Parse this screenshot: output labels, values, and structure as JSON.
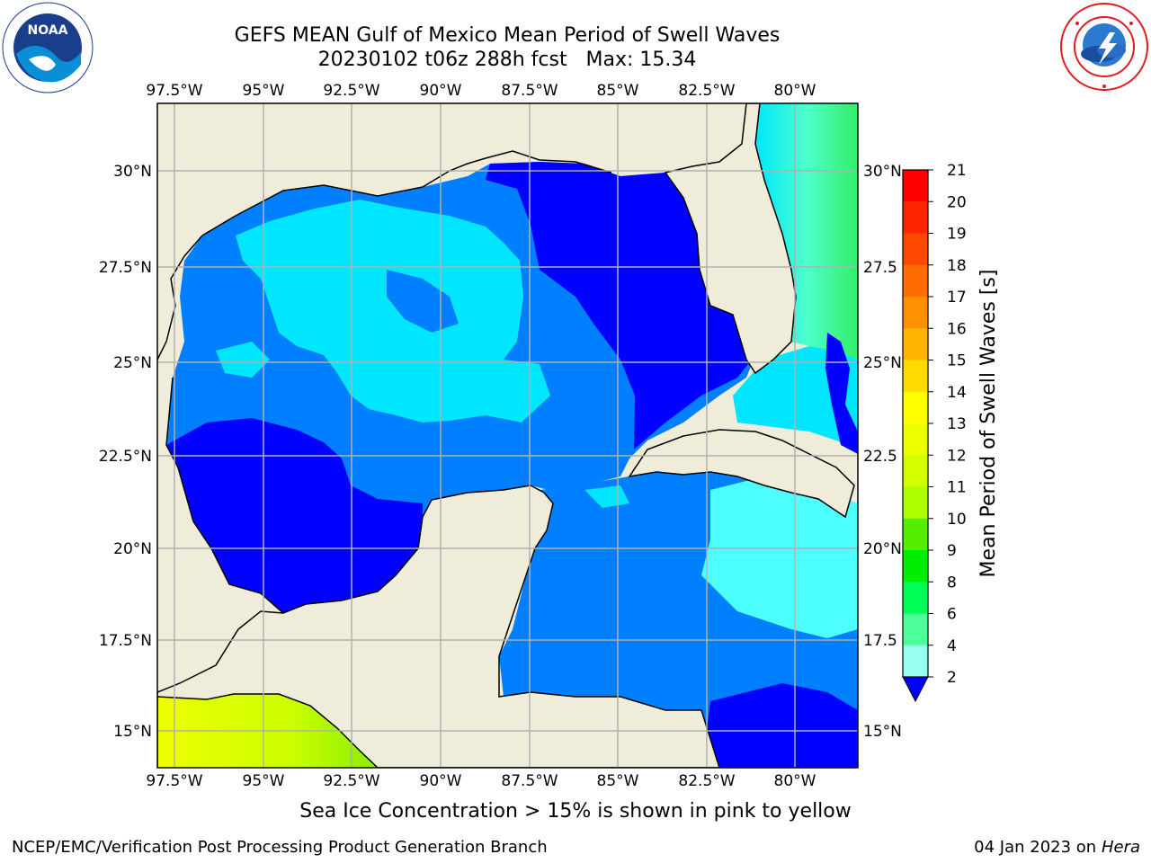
{
  "header": {
    "title_line1": "GEFS MEAN Gulf of Mexico Mean Period of Swell Waves",
    "title_line2": "20230102 t06z 288h fcst   Max: 15.34"
  },
  "logos": {
    "left": "noaa-logo",
    "left_text": "NOAA",
    "right": "nws-logo"
  },
  "map": {
    "lon_labels": [
      "97.5°W",
      "95°W",
      "92.5°W",
      "90°W",
      "87.5°W",
      "85°W",
      "82.5°W",
      "80°W"
    ],
    "lat_labels": [
      "30°N",
      "27.5°N",
      "25°N",
      "22.5°N",
      "20°N",
      "17.5°N",
      "15°N"
    ],
    "lat_labels_right": [
      "30°N",
      "27.5",
      "25°N",
      "22.5",
      "20°N",
      "17.5",
      "15°N"
    ],
    "colors": {
      "land": "#efecd9",
      "band_2_4": "#0080ff",
      "band_below_2": "#0000ff",
      "band_4_6": "#00e6ff",
      "band_8_9": "#4dffbf",
      "yellow_region": "#e6ff00",
      "grid": "#b0b0b0"
    }
  },
  "colorbar": {
    "label": "Mean Period of Swell Waves [s]",
    "ticks": [
      "21",
      "20",
      "19",
      "18",
      "17",
      "16",
      "15",
      "14",
      "13",
      "12",
      "11",
      "10",
      "9",
      "8",
      "6",
      "4",
      "2"
    ],
    "colors": [
      "#ff0000",
      "#ff2400",
      "#ff4800",
      "#ff6d00",
      "#ff9100",
      "#ffb600",
      "#ffda00",
      "#ffff00",
      "#eeff00",
      "#d4ff00",
      "#aaff00",
      "#55ee00",
      "#00ee00",
      "#00ff55",
      "#4dff99",
      "#99ffee",
      "#4dffff",
      "#00ffff",
      "#00e6ff",
      "#0080ff"
    ]
  },
  "footer": {
    "ice_note": "Sea Ice Concentration > 15% is shown in pink to yellow",
    "left": "NCEP/EMC/Verification Post Processing Product Generation Branch",
    "right_date": "04 Jan 2023 on ",
    "right_host": "Hera"
  }
}
